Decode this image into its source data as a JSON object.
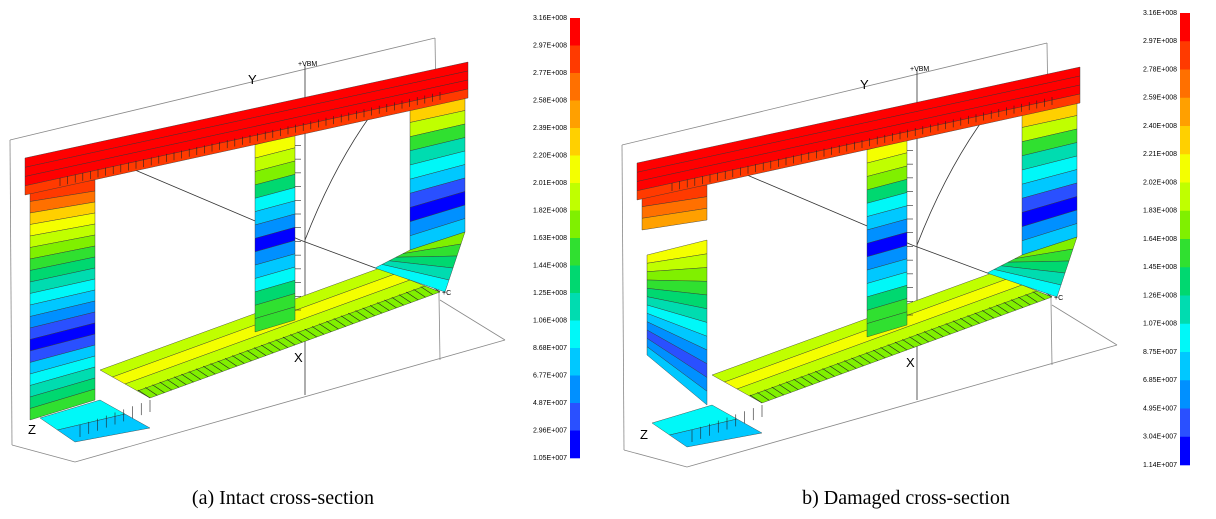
{
  "panels": [
    {
      "caption": "(a) Intact cross-section",
      "axes": {
        "y": "Y",
        "x": "X",
        "z": "Z",
        "vbm": "+VBM",
        "c": "+C"
      },
      "colorbar": [
        "3.16E+008",
        "2.97E+008",
        "2.77E+008",
        "2.58E+008",
        "2.39E+008",
        "2.20E+008",
        "2.01E+008",
        "1.82E+008",
        "1.63E+008",
        "1.44E+008",
        "1.25E+008",
        "1.06E+008",
        "8.68E+007",
        "6.77E+007",
        "4.87E+007",
        "2.96E+007",
        "1.05E+007"
      ]
    },
    {
      "caption": "b) Damaged cross-section",
      "axes": {
        "y": "Y",
        "x": "X",
        "z": "Z",
        "vbm": "+VBM",
        "c": "+C"
      },
      "colorbar": [
        "3.16E+008",
        "2.97E+008",
        "2.78E+008",
        "2.59E+008",
        "2.40E+008",
        "2.21E+008",
        "2.02E+008",
        "1.83E+008",
        "1.64E+008",
        "1.45E+008",
        "1.26E+008",
        "1.07E+008",
        "8.75E+007",
        "6.85E+007",
        "4.95E+007",
        "3.04E+007",
        "1.14E+007"
      ]
    }
  ]
}
